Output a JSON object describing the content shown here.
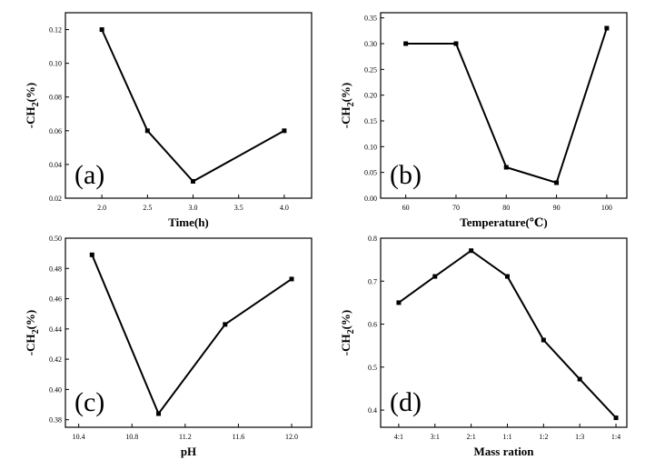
{
  "chart_data": [
    {
      "type": "line",
      "panel": "(a)",
      "xlabel": "Time(h)",
      "ylabel": "-CH",
      "ylabel_sub": "2",
      "ylabel_suffix": "(%)",
      "xlim": [
        1.6,
        4.3
      ],
      "ylim": [
        0.02,
        0.13
      ],
      "xticks": [
        2.0,
        2.5,
        3.0,
        3.5,
        4.0
      ],
      "xtick_labels": [
        "2.0",
        "2.5",
        "3.0",
        "3.5",
        "4.0"
      ],
      "yticks": [
        0.02,
        0.04,
        0.06,
        0.08,
        0.1,
        0.12
      ],
      "ytick_labels": [
        "0.02",
        "0.04",
        "0.06",
        "0.08",
        "0.10",
        "0.12"
      ],
      "x": [
        2.0,
        2.5,
        3.0,
        4.0
      ],
      "values": [
        0.12,
        0.06,
        0.03,
        0.06
      ]
    },
    {
      "type": "line",
      "panel": "(b)",
      "xlabel": "Temperature(℃)",
      "ylabel": "-CH",
      "ylabel_sub": "2",
      "ylabel_suffix": "(%)",
      "xlim": [
        55,
        104
      ],
      "ylim": [
        0.0,
        0.36
      ],
      "xticks": [
        60,
        70,
        80,
        90,
        100
      ],
      "xtick_labels": [
        "60",
        "70",
        "80",
        "90",
        "100"
      ],
      "yticks": [
        0.0,
        0.05,
        0.1,
        0.15,
        0.2,
        0.25,
        0.3,
        0.35
      ],
      "ytick_labels": [
        "0.00",
        "0.05",
        "0.10",
        "0.15",
        "0.20",
        "0.25",
        "0.30",
        "0.35"
      ],
      "x": [
        60,
        70,
        80,
        90,
        100
      ],
      "values": [
        0.3,
        0.3,
        0.06,
        0.03,
        0.33
      ]
    },
    {
      "type": "line",
      "panel": "(c)",
      "xlabel": "pH",
      "ylabel": "-CH",
      "ylabel_sub": "2",
      "ylabel_suffix": "(%)",
      "xlim": [
        10.3,
        12.15
      ],
      "ylim": [
        0.375,
        0.5
      ],
      "xticks": [
        10.4,
        10.8,
        11.2,
        11.6,
        12.0
      ],
      "xtick_labels": [
        "10.4",
        "10.8",
        "11.2",
        "11.6",
        "12.0"
      ],
      "yticks": [
        0.38,
        0.4,
        0.42,
        0.44,
        0.46,
        0.48,
        0.5
      ],
      "ytick_labels": [
        "0.38",
        "0.40",
        "0.42",
        "0.44",
        "0.46",
        "0.48",
        "0.50"
      ],
      "x": [
        10.5,
        11.0,
        11.5,
        12.0
      ],
      "values": [
        0.489,
        0.384,
        0.443,
        0.473
      ]
    },
    {
      "type": "line",
      "panel": "(d)",
      "xlabel": "Mass ration",
      "ylabel": "-CH",
      "ylabel_sub": "2",
      "ylabel_suffix": "(%)",
      "categories": [
        "4:1",
        "3:1",
        "2:1",
        "1:1",
        "1:2",
        "1:3",
        "1:4"
      ],
      "xlim": [
        -0.5,
        6.3
      ],
      "ylim": [
        0.36,
        0.8
      ],
      "yticks": [
        0.4,
        0.5,
        0.6,
        0.7,
        0.8
      ],
      "ytick_labels": [
        "0.4",
        "0.5",
        "0.6",
        "0.7",
        "0.8"
      ],
      "values": [
        0.65,
        0.711,
        0.771,
        0.711,
        0.563,
        0.472,
        0.382
      ]
    }
  ]
}
